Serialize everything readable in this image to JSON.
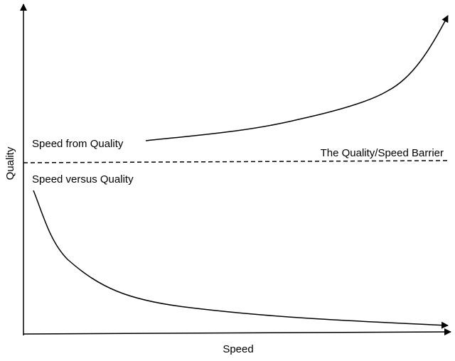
{
  "axes": {
    "x_label": "Speed",
    "y_label": "Quality"
  },
  "labels": {
    "upper_curve": "Speed from Quality",
    "lower_curve": "Speed versus Quality",
    "barrier": "The Quality/Speed Barrier"
  },
  "colors": {
    "ink": "#000000",
    "background": "#ffffff"
  }
}
